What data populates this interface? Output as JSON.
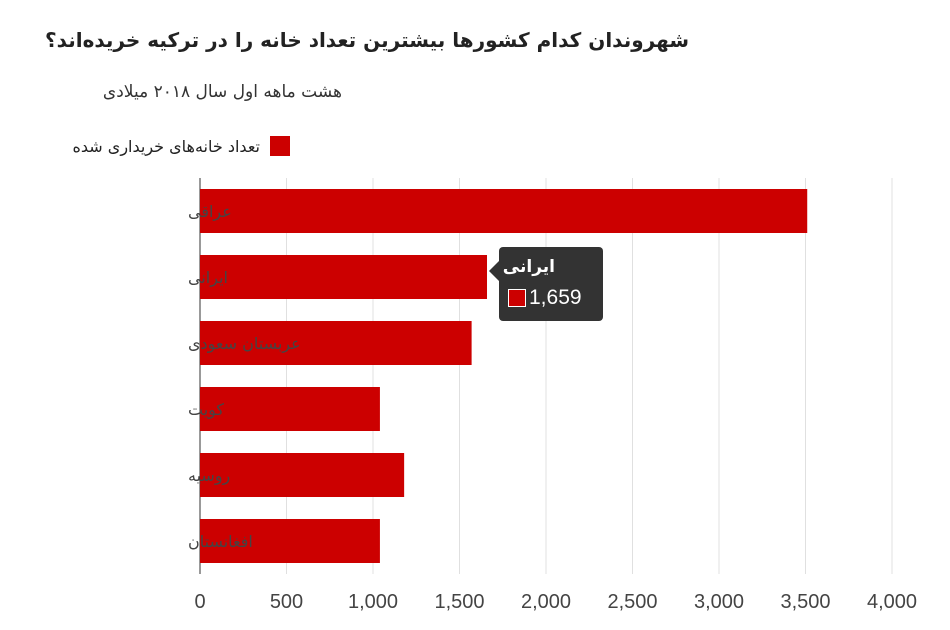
{
  "title": "شهروندان کدام کشورها بیشترین تعداد خانه را در ترکیه خریده‌اند؟",
  "subtitle": "هشت ماهه اول سال ۲۰۱۸ میلادی",
  "colors": {
    "bar": "#cc0000",
    "grid": "#e0e0e0",
    "tooltip_bg": "#333333"
  },
  "chart_data": {
    "type": "bar",
    "orientation": "horizontal",
    "categories": [
      "عراقی",
      "ایرانی",
      "عربستان سعودی",
      "کویت",
      "روسیه",
      "افغانستان"
    ],
    "series": [
      {
        "name": "تعداد خانه‌های خریداری شده",
        "values": [
          3510,
          1659,
          1570,
          1040,
          1180,
          1040
        ]
      }
    ],
    "xlim": [
      0,
      4000
    ],
    "xticks": [
      "0",
      "500",
      "1,000",
      "1,500",
      "2,000",
      "2,500",
      "3,000",
      "3,500",
      "4,000"
    ],
    "grid": true,
    "legend_position": "top-right"
  },
  "tooltip": {
    "name": "ایرانی",
    "value": "1,659"
  }
}
